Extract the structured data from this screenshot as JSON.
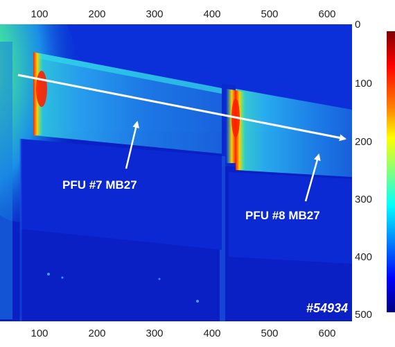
{
  "image": {
    "shot_number": "#54934",
    "x_axis_ticks": [
      "100",
      "200",
      "300",
      "400",
      "500",
      "600"
    ],
    "y_axis_ticks": [
      "0",
      "100",
      "200",
      "300",
      "400",
      "500"
    ],
    "labels": {
      "pfu7": "PFU #7 MB27",
      "pfu8": "PFU #8 MB27"
    },
    "colormap": [
      "#7f0000",
      "#ff0000",
      "#ff8000",
      "#ffff00",
      "#80ff80",
      "#00ffff",
      "#0080ff",
      "#0000ff",
      "#00007f"
    ],
    "background_color": "#0a23cc"
  }
}
